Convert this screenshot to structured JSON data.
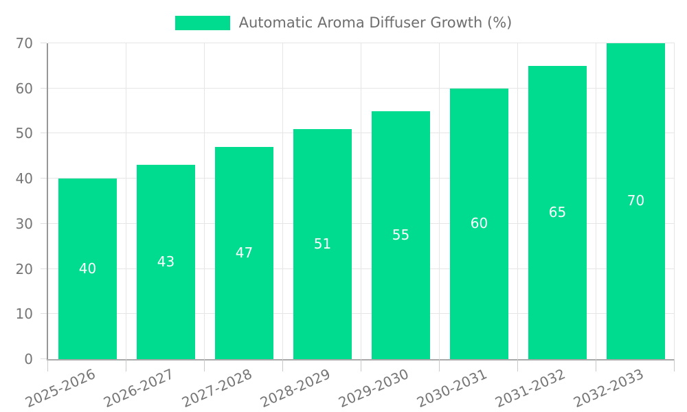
{
  "legend": {
    "label": "Automatic Aroma Diffuser Growth (%)"
  },
  "chart_data": {
    "type": "bar",
    "title": "Automatic Aroma Diffuser Growth (%)",
    "categories": [
      "2025-2026",
      "2026-2027",
      "2027-2028",
      "2028-2029",
      "2029-2030",
      "2030-2031",
      "2031-2032",
      "2032-2033"
    ],
    "values": [
      40,
      43,
      47,
      51,
      55,
      60,
      65,
      70
    ],
    "series_name": "Automatic Aroma Diffuser Growth (%)",
    "xlabel": "",
    "ylabel": "",
    "ylim": [
      0,
      70
    ],
    "ytick_step": 10,
    "grid": true,
    "legend_position": "top-center",
    "value_labels": "inside-center",
    "colors": {
      "bar": "#00DC8F",
      "value_label_text": "#FFFFFF",
      "axis_left": "#979797",
      "axis_bottom": "#A9A9A9",
      "grid": "#E5E5E5",
      "tick": "#C9C9C9",
      "tick_text": "#757575",
      "legend_text": "#6E6E6E",
      "background": "#FFFFFF"
    }
  }
}
